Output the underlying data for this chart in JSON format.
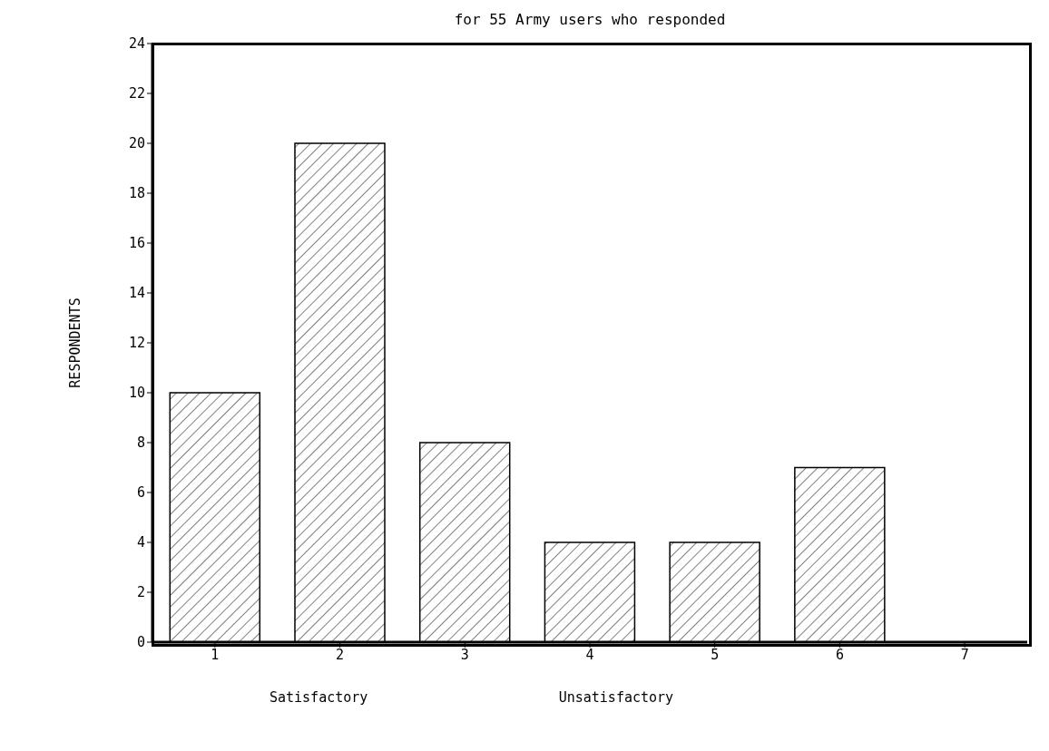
{
  "chart_data": {
    "type": "bar",
    "title": "for 55 Army users who responded",
    "ylabel": "RESPONDENTS",
    "categories": [
      "1",
      "2",
      "3",
      "4",
      "5",
      "6",
      "7"
    ],
    "values": [
      10,
      20,
      8,
      4,
      4,
      7,
      0
    ],
    "color": "#000000",
    "ylim": [
      0,
      24
    ],
    "yticks": [
      0,
      2,
      4,
      6,
      8,
      10,
      12,
      14,
      16,
      18,
      20,
      22,
      24
    ],
    "grid": false,
    "legend": false,
    "annotations": [
      "Satisfactory",
      "Unsatisfactory"
    ]
  }
}
